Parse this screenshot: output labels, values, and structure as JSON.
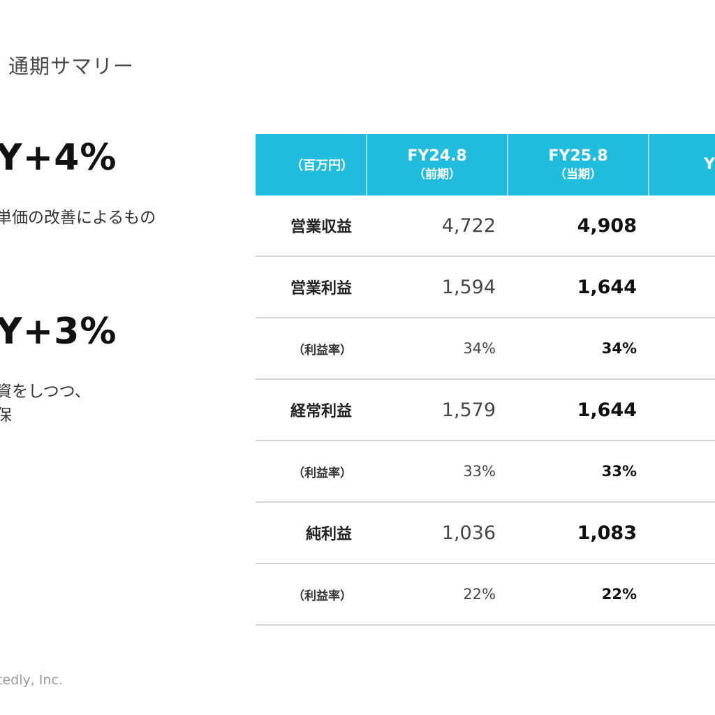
{
  "page": {
    "title": "通期サマリー",
    "footer": "tedly, Inc."
  },
  "kpis": [
    {
      "headline": "Y+4%",
      "note_lines": [
        "単価の改善によるもの"
      ]
    },
    {
      "headline": "Y+3%",
      "note_lines": [
        "資をしつつ、",
        "保"
      ]
    }
  ],
  "table": {
    "header": {
      "unit": "（百万円）",
      "prev": {
        "main": "FY24.8",
        "sub": "（前期）"
      },
      "curr": {
        "main": "FY25.8",
        "sub": "（当期）"
      },
      "yoy": "Y("
    },
    "rows": [
      {
        "label": "営業収益",
        "prev": "4,722",
        "curr": "4,908",
        "sub": false
      },
      {
        "label": "営業利益",
        "prev": "1,594",
        "curr": "1,644",
        "sub": false
      },
      {
        "label": "（利益率）",
        "prev": "34%",
        "curr": "34%",
        "sub": true
      },
      {
        "label": "経常利益",
        "prev": "1,579",
        "curr": "1,644",
        "sub": false
      },
      {
        "label": "（利益率）",
        "prev": "33%",
        "curr": "33%",
        "sub": true
      },
      {
        "label": "純利益",
        "prev": "1,036",
        "curr": "1,083",
        "sub": false
      },
      {
        "label": "（利益率）",
        "prev": "22%",
        "curr": "22%",
        "sub": true
      }
    ]
  },
  "colors": {
    "header_bg": "#22bddd",
    "row_divider": "#d7d7d7"
  }
}
